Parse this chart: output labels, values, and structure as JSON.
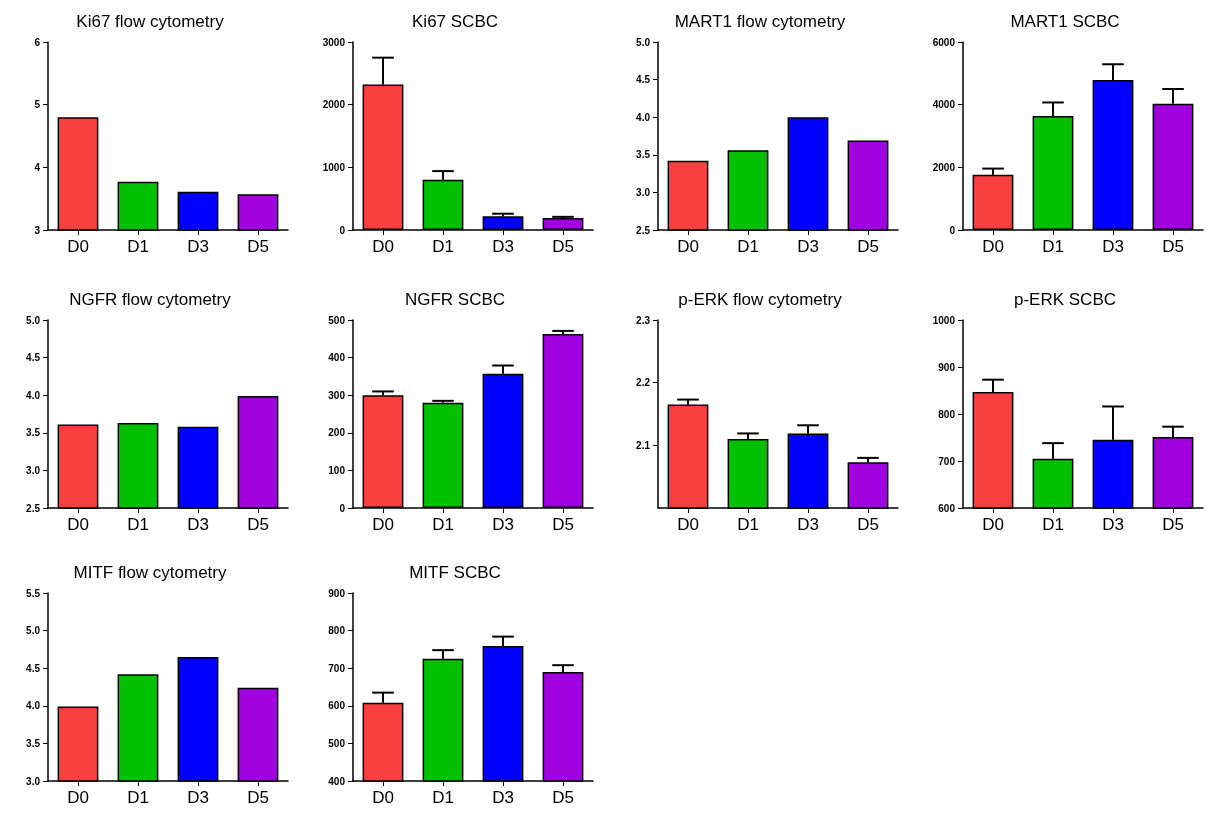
{
  "chart_data": [
    {
      "type": "bar",
      "title": "Ki67 flow cytometry",
      "categories": [
        "D0",
        "D1",
        "D3",
        "D5"
      ],
      "values": [
        4.8,
        3.77,
        3.61,
        3.57
      ],
      "colors": [
        "#f84040",
        "#00c000",
        "#0000ff",
        "#a000e0"
      ],
      "ylim": [
        3,
        6
      ],
      "yticks": [
        3,
        4,
        5,
        6
      ]
    },
    {
      "type": "bar",
      "title": "Ki67 SCBC",
      "categories": [
        "D0",
        "D1",
        "D3",
        "D5"
      ],
      "values": [
        2320,
        800,
        220,
        190
      ],
      "errors": [
        [
          2320,
          2750
        ],
        [
          800,
          940
        ],
        [
          220,
          260
        ],
        [
          190,
          210
        ]
      ],
      "colors": [
        "#f84040",
        "#00c000",
        "#0000ff",
        "#a000e0"
      ],
      "ylim": [
        0,
        3000
      ],
      "yticks": [
        0,
        1000,
        2000,
        3000
      ]
    },
    {
      "type": "bar",
      "title": "MART1 flow cytometry",
      "categories": [
        "D0",
        "D1",
        "D3",
        "D5"
      ],
      "values": [
        3.42,
        3.56,
        4.0,
        3.69
      ],
      "colors": [
        "#f84040",
        "#00c000",
        "#0000ff",
        "#a000e0"
      ],
      "ylim": [
        2.5,
        5
      ],
      "yticks": [
        2.5,
        {
          "value": 3,
          "label": "3.0"
        },
        3.5,
        {
          "value": 4,
          "label": "4.0"
        },
        4.5,
        {
          "value": 5,
          "label": "5.0"
        }
      ]
    },
    {
      "type": "bar",
      "title": "MART1 SCBC",
      "categories": [
        "D0",
        "D1",
        "D3",
        "D5"
      ],
      "values": [
        1760,
        3640,
        4790,
        4030
      ],
      "errors": [
        [
          1760,
          1960
        ],
        [
          3640,
          4070
        ],
        [
          4790,
          5290
        ],
        [
          4030,
          4500
        ]
      ],
      "colors": [
        "#f84040",
        "#00c000",
        "#0000ff",
        "#a000e0"
      ],
      "ylim": [
        0,
        6000
      ],
      "yticks": [
        0,
        2000,
        4000,
        6000
      ]
    },
    {
      "type": "bar",
      "title": "NGFR flow cytometry",
      "categories": [
        "D0",
        "D1",
        "D3",
        "D5"
      ],
      "values": [
        3.61,
        3.63,
        3.58,
        3.99
      ],
      "colors": [
        "#f84040",
        "#00c000",
        "#0000ff",
        "#a000e0"
      ],
      "ylim": [
        2.5,
        5
      ],
      "yticks": [
        2.5,
        {
          "value": 3,
          "label": "3.0"
        },
        3.5,
        {
          "value": 4,
          "label": "4.0"
        },
        4.5,
        {
          "value": 5,
          "label": "5.0"
        }
      ]
    },
    {
      "type": "bar",
      "title": "NGFR SCBC",
      "categories": [
        "D0",
        "D1",
        "D3",
        "D5"
      ],
      "values": [
        300,
        280,
        357,
        463
      ],
      "errors": [
        [
          300,
          310
        ],
        [
          280,
          285
        ],
        [
          357,
          379
        ],
        [
          463,
          471
        ]
      ],
      "colors": [
        "#f84040",
        "#00c000",
        "#0000ff",
        "#a000e0"
      ],
      "ylim": [
        0,
        500
      ],
      "yticks": [
        0,
        100,
        200,
        300,
        400,
        500
      ]
    },
    {
      "type": "bar",
      "title": "p-ERK flow cytometry",
      "categories": [
        "D0",
        "D1",
        "D3",
        "D5"
      ],
      "values": [
        2.165,
        2.11,
        2.119,
        2.073
      ],
      "errors": [
        [
          2.165,
          2.173
        ],
        [
          2.11,
          2.119
        ],
        [
          2.119,
          2.132
        ],
        [
          2.073,
          2.08
        ]
      ],
      "colors": [
        "#f84040",
        "#00c000",
        "#0000ff",
        "#a000e0"
      ],
      "ylim": [
        2.0,
        2.3
      ],
      "yticks": [
        2.1,
        2.2,
        2.3
      ]
    },
    {
      "type": "bar",
      "title": "p-ERK SCBC",
      "categories": [
        "D0",
        "D1",
        "D3",
        "D5"
      ],
      "values": [
        847,
        705,
        745,
        751
      ],
      "errors": [
        [
          847,
          873
        ],
        [
          705,
          738
        ],
        [
          745,
          816
        ],
        [
          751,
          773
        ]
      ],
      "colors": [
        "#f84040",
        "#00c000",
        "#0000ff",
        "#a000e0"
      ],
      "ylim": [
        600,
        1000
      ],
      "yticks": [
        600,
        700,
        800,
        900,
        1000
      ]
    },
    {
      "type": "bar",
      "title": "MITF flow cytometry",
      "categories": [
        "D0",
        "D1",
        "D3",
        "D5"
      ],
      "values": [
        3.99,
        4.42,
        4.65,
        4.24
      ],
      "colors": [
        "#f84040",
        "#00c000",
        "#0000ff",
        "#a000e0"
      ],
      "ylim": [
        3,
        5.5
      ],
      "yticks": [
        {
          "value": 3,
          "label": "3.0"
        },
        3.5,
        {
          "value": 4,
          "label": "4.0"
        },
        4.5,
        {
          "value": 5,
          "label": "5.0"
        },
        5.5
      ]
    },
    {
      "type": "bar",
      "title": "MITF SCBC",
      "categories": [
        "D0",
        "D1",
        "D3",
        "D5"
      ],
      "values": [
        608,
        725,
        759,
        690
      ],
      "errors": [
        [
          608,
          635
        ],
        [
          725,
          748
        ],
        [
          759,
          784
        ],
        [
          690,
          708
        ]
      ],
      "colors": [
        "#f84040",
        "#00c000",
        "#0000ff",
        "#a000e0"
      ],
      "ylim": [
        400,
        900
      ],
      "yticks": [
        400,
        500,
        600,
        700,
        800,
        900
      ]
    }
  ]
}
